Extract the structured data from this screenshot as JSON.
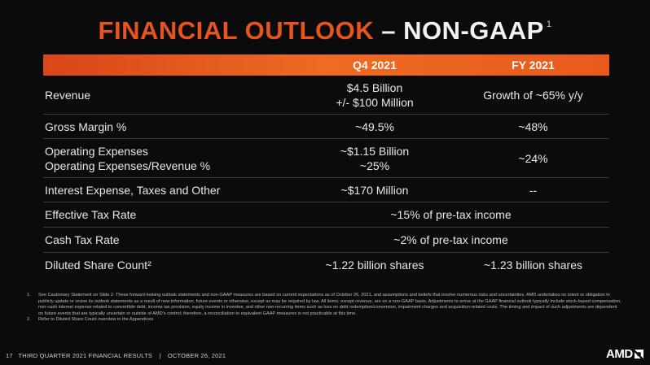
{
  "title": {
    "accent": "FINANCIAL OUTLOOK",
    "rest": "– NON-GAAP",
    "sup": "1"
  },
  "table": {
    "headers": [
      "",
      "Q4 2021",
      "FY 2021"
    ],
    "rows": [
      {
        "label": [
          "Revenue"
        ],
        "q4": [
          "$4.5 Billion",
          "+/- $100 Million"
        ],
        "fy": [
          "Growth of ~65% y/y"
        ]
      },
      {
        "label": [
          "Gross Margin %"
        ],
        "q4": [
          "~49.5%"
        ],
        "fy": [
          "~48%"
        ]
      },
      {
        "label": [
          "Operating Expenses",
          "Operating Expenses/Revenue %"
        ],
        "q4": [
          "~$1.15 Billion",
          "~25%"
        ],
        "fy": [
          "~24%"
        ]
      },
      {
        "label": [
          "Interest Expense, Taxes and Other"
        ],
        "q4": [
          "~$170 Million"
        ],
        "fy": [
          "--"
        ]
      },
      {
        "label": [
          "Effective Tax Rate"
        ],
        "span": "~15% of pre-tax income"
      },
      {
        "label": [
          "Cash Tax Rate"
        ],
        "span": "~2% of pre-tax income"
      },
      {
        "label": [
          "Diluted Share Count²"
        ],
        "q4": [
          "~1.22 billion shares"
        ],
        "fy": [
          "~1.23 billion shares"
        ]
      }
    ]
  },
  "footnotes": [
    {
      "num": "1.",
      "text": "See Cautionary Statement on Slide 2. These forward-looking outlook statements and non-GAAP measures are based on current expectations as of October 26, 2021, and assumptions and beliefs that involve numerous risks and uncertainties. AMD undertakes no intent or obligation to publicly update or revise its outlook statements as a result of new information, future events or otherwise, except as may be required by law. All items, except revenue, are on a non-GAAP basis. Adjustments to arrive at the GAAP financial outlook typically include stock-based compensation, non-cash interest expense related to convertible debt, income tax provision, equity income in investee, and other non-recurring items such as loss on debt redemption/conversion, impairment charges and acquisition-related costs. The timing and impact of such adjustments are dependent on future events that are typically uncertain or outside of AMD's control; therefore, a reconciliation to equivalent GAAP measures is not practicable at this time."
    },
    {
      "num": "2.",
      "text": "Refer to Diluted Share Count overview in the Appendices"
    }
  ],
  "footer": {
    "page": "17",
    "deck": "THIRD QUARTER 2021 FINANCIAL RESULTS",
    "sep": "|",
    "date": "OCTOBER 26, 2021"
  },
  "logo": {
    "text": "AMD",
    "icon": "amd-arrow-icon"
  }
}
